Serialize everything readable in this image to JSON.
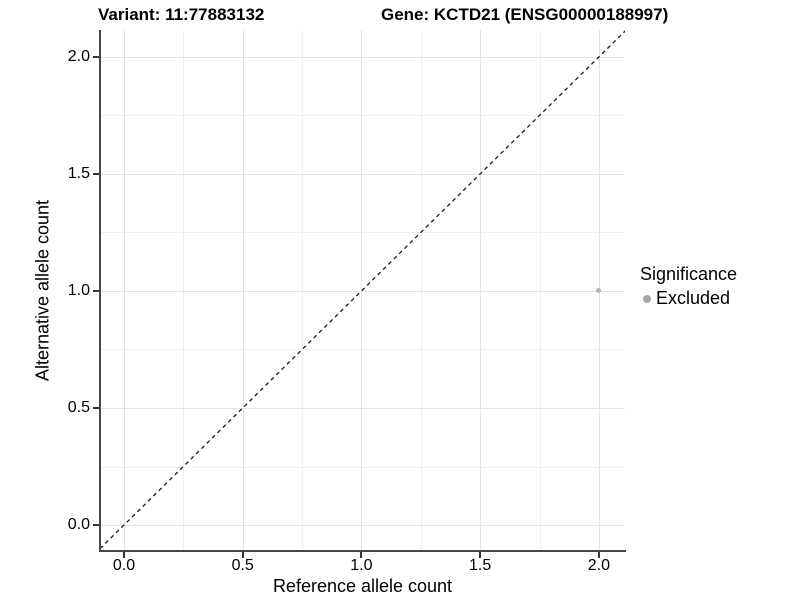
{
  "chart_data": {
    "type": "scatter",
    "titles": {
      "left": "Variant: 11:77883132",
      "right": "Gene: KCTD21 (ENSG00000188997)"
    },
    "xlabel": "Reference allele count",
    "ylabel": "Alternative allele count",
    "xlim": [
      -0.101,
      2.11
    ],
    "ylim": [
      -0.111,
      2.115
    ],
    "x_ticks": [
      {
        "value": 0.0,
        "label": "0.0"
      },
      {
        "value": 0.5,
        "label": "0.5"
      },
      {
        "value": 1.0,
        "label": "1.0"
      },
      {
        "value": 1.5,
        "label": "1.5"
      },
      {
        "value": 2.0,
        "label": "2.0"
      }
    ],
    "y_ticks": [
      {
        "value": 0.0,
        "label": "0.0"
      },
      {
        "value": 0.5,
        "label": "0.5"
      },
      {
        "value": 1.0,
        "label": "1.0"
      },
      {
        "value": 1.5,
        "label": "1.5"
      },
      {
        "value": 2.0,
        "label": "2.0"
      }
    ],
    "minor_breaks": [
      0.25,
      0.75,
      1.25,
      1.75
    ],
    "grid": "major and minor gridlines, light gray on white",
    "reference_line": {
      "type": "identity y = x",
      "style": "dashed",
      "color": "#1a1a1a"
    },
    "series": [
      {
        "name": "Excluded",
        "color": "#b3b3b3",
        "points": [
          {
            "x": 2.0,
            "y": 1.0
          }
        ]
      }
    ],
    "legend": {
      "title": "Significance",
      "position": "right",
      "items": [
        {
          "label": "Excluded",
          "color": "#a6a6a6"
        }
      ]
    }
  },
  "colors": {
    "background": "#ffffff",
    "grid_major": "#e3e3e3",
    "grid_minor": "#efefef",
    "axis_line": "#474747",
    "tick_mark": "#333333"
  }
}
